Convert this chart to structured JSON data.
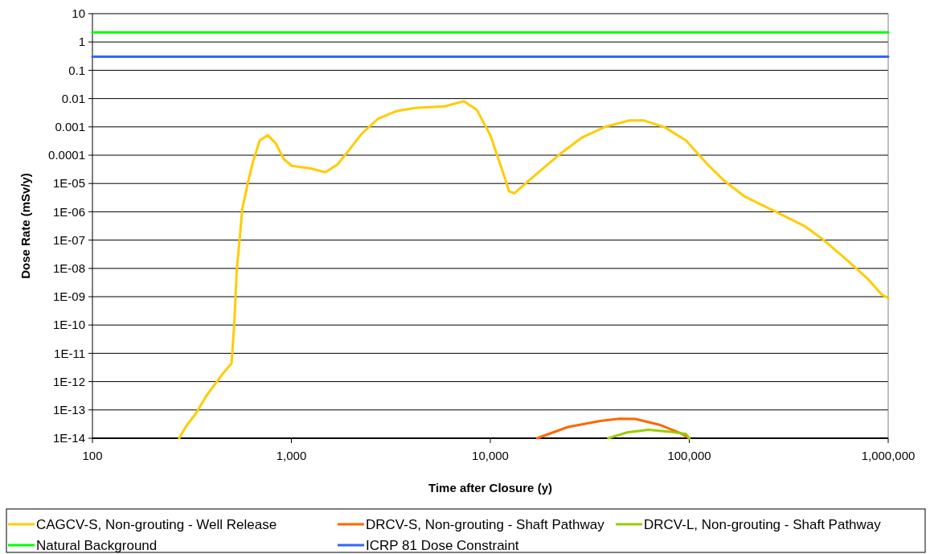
{
  "chart_data": {
    "type": "line",
    "xlabel": "Time after Closure (y)",
    "ylabel": "Dose Rate (mSv/y)",
    "log": "xy",
    "grid": "y",
    "legend": "bottom",
    "line_style": "solid",
    "marker": "none",
    "xlim": [
      100,
      1000000
    ],
    "xticks": [
      100,
      {
        "value": 1000,
        "label": "1,000"
      },
      {
        "value": 10000,
        "label": "10,000"
      },
      {
        "value": 100000,
        "label": "100,000"
      },
      {
        "value": 1000000,
        "label": "1,000,000"
      }
    ],
    "ylim": [
      1e-14,
      10
    ],
    "yticks": [
      10,
      1,
      0.1,
      0.01,
      0.001,
      0.0001,
      {
        "value": 1e-05,
        "label": "1E-05"
      },
      {
        "value": 1e-06,
        "label": "1E-06"
      },
      {
        "value": 1e-07,
        "label": "1E-07"
      },
      {
        "value": 1e-08,
        "label": "1E-08"
      },
      {
        "value": 1e-09,
        "label": "1E-09"
      },
      {
        "value": 1e-10,
        "label": "1E-10"
      },
      {
        "value": 1e-11,
        "label": "1E-11"
      },
      {
        "value": 1e-12,
        "label": "1E-12"
      },
      {
        "value": 1e-13,
        "label": "1E-13"
      },
      {
        "value": 1e-14,
        "label": "1E-14"
      }
    ],
    "series": [
      {
        "name": "CAGCV-S, Non-grouting - Well Release",
        "color": "#ffcc00",
        "x": [
          273,
          295,
          329,
          372,
          449,
          500,
          516,
          532,
          549,
          566,
          603,
          641,
          693,
          761,
          835,
          917,
          1005,
          1250,
          1483,
          1706,
          1932,
          2256,
          2716,
          3375,
          4194,
          5906,
          7333,
          8551,
          10000,
          11690,
          12420,
          13200,
          17500,
          22400,
          28700,
          37950,
          50200,
          58700,
          75100,
          96300,
          123600,
          148900,
          190800,
          268500,
          377600,
          469000,
          583000,
          680900,
          794000,
          927000,
          1000000
        ],
        "values": [
          1e-14,
          2.6e-14,
          7e-14,
          3e-13,
          1.8e-12,
          4.4e-12,
          1e-10,
          1e-08,
          1e-07,
          1.2e-06,
          1e-05,
          5.8e-05,
          0.00033,
          0.00051,
          0.00026,
          7.2e-05,
          4.2e-05,
          3.4e-05,
          2.5e-05,
          4.7e-05,
          0.00014,
          0.00057,
          0.0019,
          0.0036,
          0.0047,
          0.0053,
          0.0081,
          0.004,
          0.00051,
          2e-05,
          5.3e-06,
          4.5e-06,
          2.5e-05,
          0.00011,
          0.00041,
          0.00102,
          0.0017,
          0.0017,
          0.00098,
          0.00033,
          4.7e-05,
          1.3e-05,
          3.4e-06,
          1.05e-06,
          3.2e-07,
          1.07e-07,
          2.9e-08,
          1.1e-08,
          4.1e-09,
          1.2e-09,
          9e-10
        ]
      },
      {
        "name": "DRCV-S, Non-grouting - Shaft Pathway",
        "color": "#ff6600",
        "x": [
          17200,
          24600,
          35700,
          44400,
          53500,
          70700,
          90600,
          100000
        ],
        "values": [
          1e-14,
          2.5e-14,
          4.1e-14,
          4.9e-14,
          4.8e-14,
          3e-14,
          1.5e-14,
          1e-14
        ]
      },
      {
        "name": "DRCV-L, Non-grouting - Shaft Pathway",
        "color": "#99cc00",
        "x": [
          39200,
          48600,
          62400,
          80000,
          96300,
          100000
        ],
        "values": [
          1e-14,
          1.6e-14,
          2e-14,
          1.7e-14,
          1.4e-14,
          1e-14
        ]
      },
      {
        "name": "Natural Background",
        "color": "#00ff00",
        "x": [
          100,
          1000000
        ],
        "values": [
          2.2,
          2.2
        ]
      },
      {
        "name": "ICRP 81 Dose Constraint",
        "color": "#3366ff",
        "x": [
          100,
          1000000
        ],
        "values": [
          0.3,
          0.3
        ]
      }
    ]
  }
}
